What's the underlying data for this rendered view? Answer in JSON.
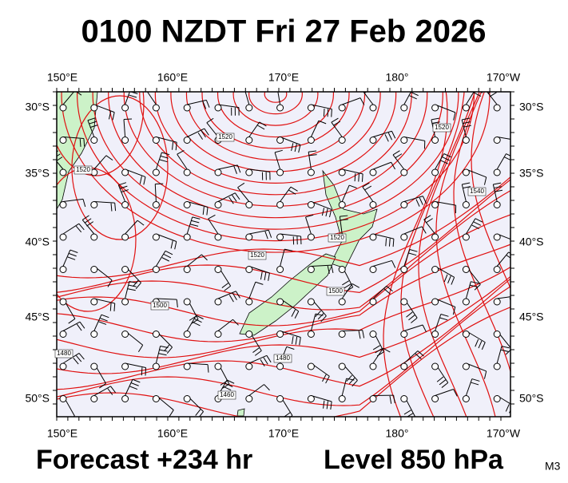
{
  "header": {
    "title": "0100 NZDT Fri 27 Feb 2026"
  },
  "map": {
    "top_labels": [
      "150°E",
      "160°E",
      "170°E",
      "180°",
      "170°W"
    ],
    "bottom_labels": [
      "150°E",
      "160°E",
      "170°E",
      "180°",
      "170°W"
    ],
    "left_labels": [
      "30°S",
      "35°S",
      "40°S",
      "45°S",
      "50°S"
    ],
    "right_labels": [
      "30°S",
      "35°S",
      "40°S",
      "45°S",
      "50°S"
    ],
    "contour_labels": [
      "1520",
      "1520",
      "1520",
      "1540",
      "1520",
      "1520",
      "1500",
      "1500",
      "1480",
      "1480",
      "1460"
    ]
  },
  "footer": {
    "forecast": "Forecast +234 hr",
    "level": "Level 850 hPa",
    "model": "M3"
  }
}
